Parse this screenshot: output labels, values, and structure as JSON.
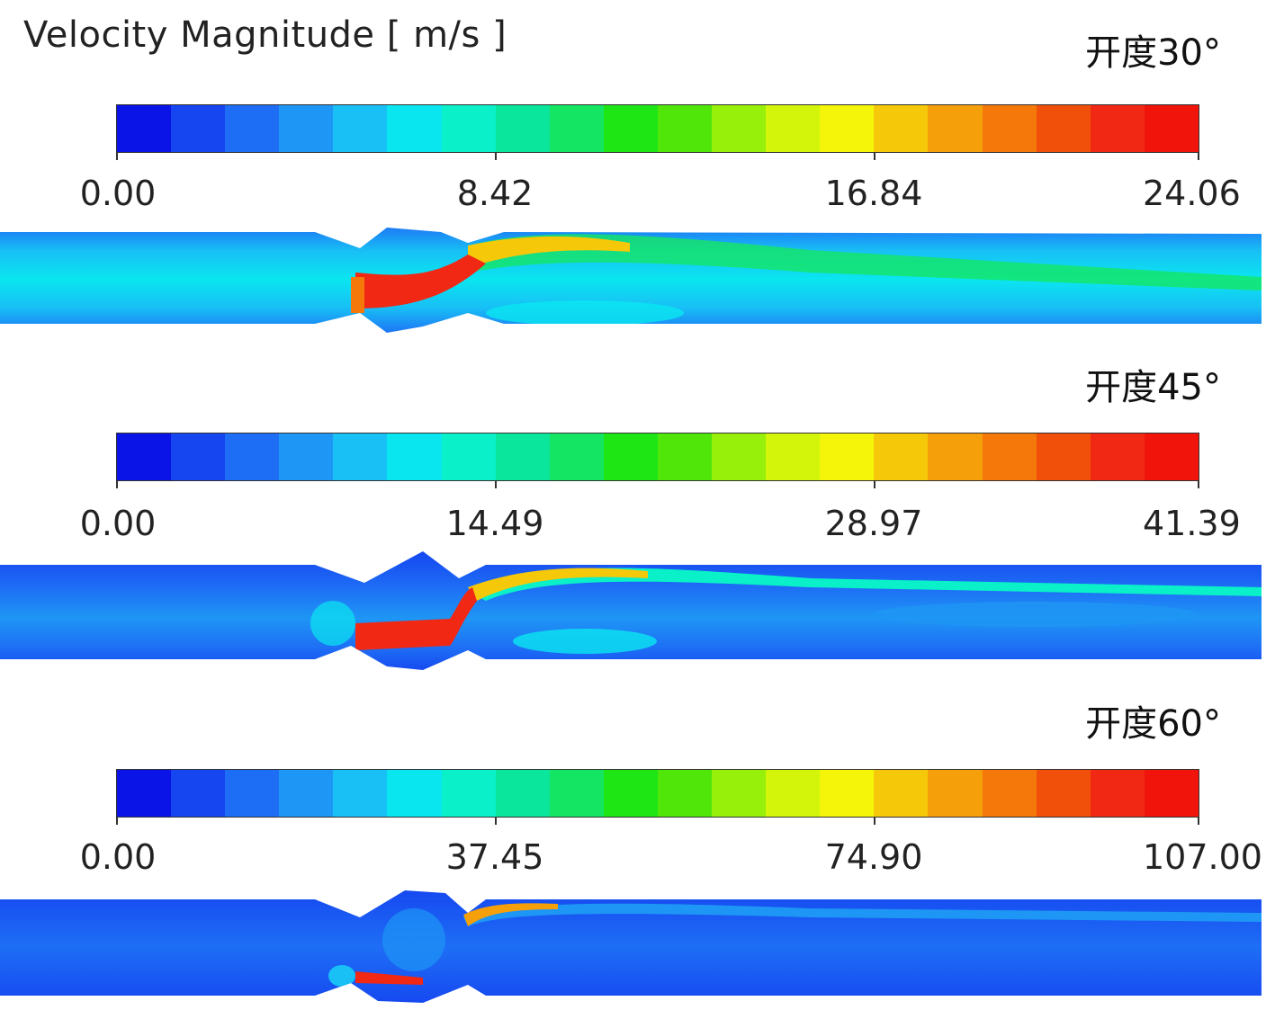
{
  "title": "Velocity Magnitude [ m/s ]",
  "colormap": [
    "#0a14e6",
    "#1546f0",
    "#1e6ef5",
    "#1e96f5",
    "#18c0f5",
    "#0ae6f0",
    "#0af0c8",
    "#0ae69b",
    "#14e664",
    "#1ee614",
    "#50e60a",
    "#96f00a",
    "#d2f50a",
    "#f5f50a",
    "#f5c80a",
    "#f5a00a",
    "#f5780a",
    "#f0500a",
    "#f02814",
    "#f0140a"
  ],
  "panels": [
    {
      "label": "开度30°",
      "ticks": [
        "0.00",
        "8.42",
        "16.84",
        "24.06"
      ]
    },
    {
      "label": "开度45°",
      "ticks": [
        "0.00",
        "14.49",
        "28.97",
        "41.39"
      ]
    },
    {
      "label": "开度60°",
      "ticks": [
        "0.00",
        "37.45",
        "74.90",
        "107.00"
      ]
    }
  ]
}
